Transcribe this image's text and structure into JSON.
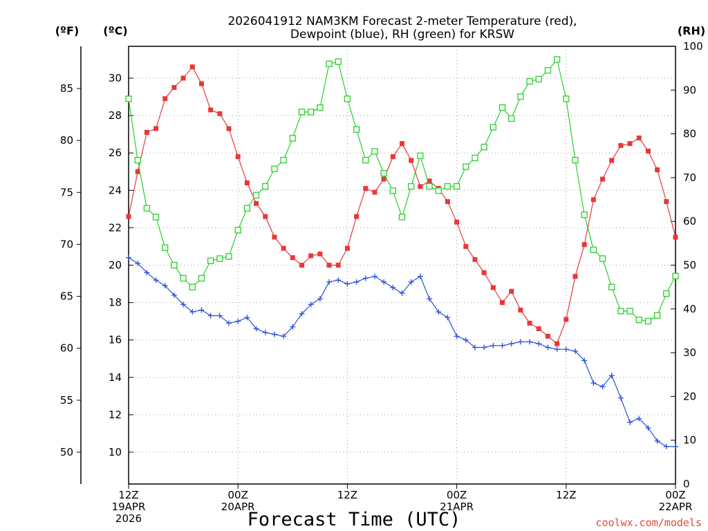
{
  "title_line1": "2026041912 NAM3KM Forecast 2-meter Temperature (red),",
  "title_line2": "Dewpoint (blue), RH (green) for KRSW",
  "units": {
    "f": "(ºF)",
    "c": "(ºC)",
    "rh": "(RH)"
  },
  "xlabel": "Forecast Time (UTC)",
  "credit": "coolwx.com/models",
  "colors": {
    "temp": "#e8373a",
    "dew": "#2a4fd8",
    "rh": "#28d028"
  },
  "chart_data": {
    "type": "line",
    "x_hours": {
      "start": 0,
      "end": 60,
      "step": 1
    },
    "x_ticks": [
      {
        "h": 0,
        "lines": [
          "12Z",
          "19APR",
          "2026"
        ]
      },
      {
        "h": 12,
        "lines": [
          "00Z",
          "20APR"
        ]
      },
      {
        "h": 24,
        "lines": [
          "12Z"
        ]
      },
      {
        "h": 36,
        "lines": [
          "00Z",
          "21APR"
        ]
      },
      {
        "h": 48,
        "lines": [
          "12Z"
        ]
      },
      {
        "h": 60,
        "lines": [
          "00Z",
          "22APR"
        ]
      }
    ],
    "y_c": {
      "range": [
        8.3,
        31.7
      ],
      "ticks": [
        10,
        12,
        14,
        16,
        18,
        20,
        22,
        24,
        26,
        28,
        30
      ]
    },
    "y_f": {
      "ticks": [
        50,
        55,
        60,
        65,
        70,
        75,
        80,
        85
      ]
    },
    "y_rh": {
      "range": [
        0,
        100
      ],
      "ticks": [
        0,
        10,
        20,
        30,
        40,
        50,
        60,
        70,
        80,
        90,
        100
      ]
    },
    "series": [
      {
        "name": "2-meter Temperature",
        "unit": "C",
        "color": "#e8373a",
        "marker": "filled-square",
        "values": [
          22.6,
          25.0,
          27.1,
          27.3,
          28.9,
          29.5,
          30.0,
          30.6,
          29.7,
          28.3,
          28.1,
          27.3,
          25.8,
          24.4,
          23.3,
          22.6,
          21.5,
          20.9,
          20.4,
          20.0,
          20.5,
          20.6,
          20.0,
          20.0,
          20.9,
          22.6,
          24.1,
          23.9,
          24.6,
          25.8,
          26.5,
          25.6,
          24.2,
          24.5,
          24.1,
          23.4,
          22.3,
          21.0,
          20.3,
          19.6,
          18.8,
          18.0,
          18.6,
          17.6,
          16.9,
          16.6,
          16.2,
          15.8,
          17.1,
          19.4,
          21.1,
          23.5,
          24.6,
          25.6,
          26.4,
          26.5,
          26.8,
          26.1,
          25.1,
          23.4,
          21.5
        ]
      },
      {
        "name": "Dewpoint",
        "unit": "C",
        "color": "#2a4fd8",
        "marker": "plus",
        "values": [
          20.4,
          20.1,
          19.6,
          19.2,
          18.9,
          18.4,
          17.9,
          17.5,
          17.6,
          17.3,
          17.3,
          16.9,
          17.0,
          17.2,
          16.6,
          16.4,
          16.3,
          16.2,
          16.7,
          17.4,
          17.9,
          18.2,
          19.1,
          19.2,
          19.0,
          19.1,
          19.3,
          19.4,
          19.1,
          18.8,
          18.5,
          19.1,
          19.4,
          18.2,
          17.5,
          17.2,
          16.2,
          16.0,
          15.6,
          15.6,
          15.7,
          15.7,
          15.8,
          15.9,
          15.9,
          15.8,
          15.6,
          15.5,
          15.5,
          15.4,
          14.9,
          13.7,
          13.5,
          14.1,
          12.9,
          11.6,
          11.8,
          11.3,
          10.6,
          10.3,
          10.3
        ]
      },
      {
        "name": "RH",
        "unit": "%",
        "color": "#28d028",
        "marker": "open-square",
        "values": [
          88,
          74,
          63,
          61,
          54,
          50,
          47,
          45,
          47,
          51,
          51.5,
          52,
          58,
          63,
          66,
          68,
          72,
          74,
          79,
          85,
          85,
          86,
          96,
          96.5,
          88,
          81,
          74,
          76,
          71,
          67,
          61,
          68,
          75,
          68,
          67,
          68,
          68,
          72.5,
          74.5,
          77,
          81.5,
          86,
          83.5,
          88.5,
          92,
          92.5,
          94.5,
          97,
          88,
          74,
          61.5,
          53.5,
          51.5,
          45,
          39.5,
          39.5,
          37.5,
          37.2,
          38.5,
          43.5,
          47.5
        ]
      }
    ]
  }
}
